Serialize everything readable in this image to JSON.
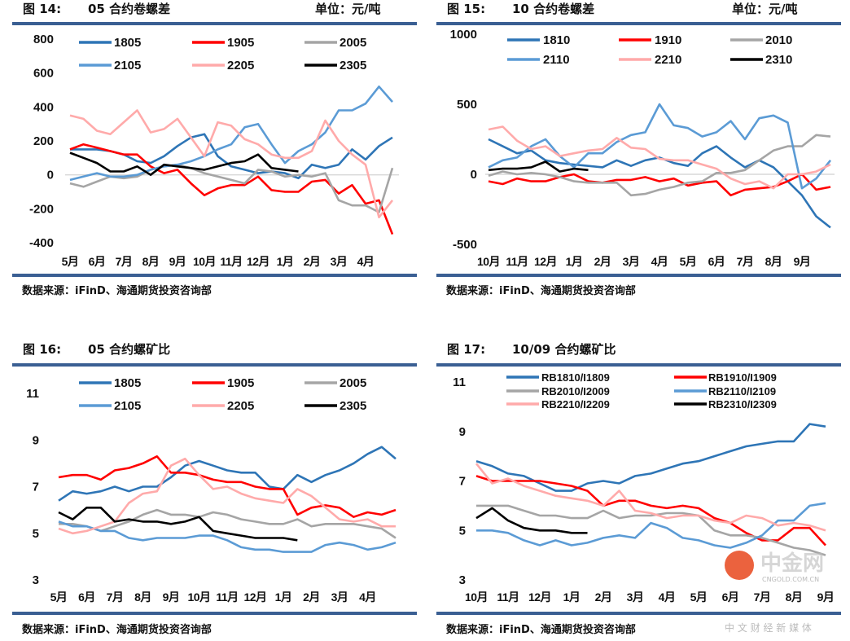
{
  "source_label": "数据来源：iFinD、海通期货投资咨询部",
  "watermark": {
    "name": "中金网",
    "domain": "CNGOLD.COM.CN",
    "slogan": "中 文 财 经 新 媒 体"
  },
  "chart_data": [
    {
      "type": "line",
      "figure_no": "图 14:",
      "title": "05 合约卷螺差",
      "unit": "单位：元/吨",
      "x_ticks": [
        "5月",
        "6月",
        "7月",
        "8月",
        "9月",
        "10月",
        "11月",
        "12月",
        "1月",
        "2月",
        "3月",
        "4月"
      ],
      "y_ticks": [
        "800",
        "600",
        "400",
        "200",
        "0",
        "-200",
        "-400"
      ],
      "ylim": [
        -400,
        800
      ],
      "zero_line": true,
      "legend": "top",
      "series": [
        {
          "name": "1805",
          "color": "#2e75b6",
          "values": [
            150,
            150,
            150,
            140,
            120,
            80,
            70,
            110,
            170,
            220,
            240,
            110,
            50,
            30,
            10,
            20,
            10,
            -20,
            60,
            40,
            60,
            150,
            90,
            170,
            220
          ]
        },
        {
          "name": "1905",
          "color": "#ff0000",
          "values": [
            150,
            180,
            160,
            140,
            120,
            120,
            50,
            10,
            30,
            -50,
            -120,
            -80,
            -60,
            -60,
            -10,
            -90,
            -100,
            -100,
            -40,
            -30,
            -110,
            -60,
            -170,
            -150,
            -350
          ]
        },
        {
          "name": "2005",
          "color": "#a5a5a5",
          "values": [
            -50,
            -70,
            -40,
            -10,
            -20,
            -10,
            30,
            50,
            60,
            40,
            10,
            -10,
            -30,
            -50,
            30,
            20,
            -10,
            0,
            -10,
            10,
            -150,
            -180,
            -180,
            -220,
            40
          ]
        },
        {
          "name": "2105",
          "color": "#5b9bd5",
          "values": [
            -30,
            -10,
            10,
            -10,
            -10,
            0,
            30,
            50,
            60,
            80,
            110,
            150,
            180,
            280,
            300,
            180,
            70,
            140,
            180,
            250,
            380,
            380,
            420,
            520,
            430
          ]
        },
        {
          "name": "2205",
          "color": "#ffaaaa",
          "values": [
            350,
            330,
            260,
            240,
            310,
            380,
            250,
            270,
            330,
            220,
            110,
            310,
            290,
            210,
            180,
            120,
            100,
            100,
            140,
            320,
            200,
            120,
            60,
            -250,
            -150
          ]
        },
        {
          "name": "2305",
          "color": "#000000",
          "values": [
            130,
            100,
            70,
            20,
            20,
            50,
            0,
            60,
            50,
            40,
            30,
            50,
            70,
            80,
            120,
            40,
            30,
            20
          ]
        }
      ]
    },
    {
      "type": "line",
      "figure_no": "图 15:",
      "title": "10 合约卷螺差",
      "unit": "单位：元/吨",
      "x_ticks": [
        "10月",
        "11月",
        "12月",
        "1月",
        "2月",
        "3月",
        "4月",
        "5月",
        "6月",
        "7月",
        "8月",
        "9月"
      ],
      "y_ticks": [
        "1000",
        "500",
        "0",
        "-500"
      ],
      "ylim": [
        -500,
        1000
      ],
      "zero_line": true,
      "legend": "top",
      "series": [
        {
          "name": "1810",
          "color": "#2e75b6",
          "values": [
            250,
            200,
            150,
            170,
            100,
            80,
            70,
            60,
            50,
            100,
            60,
            100,
            120,
            80,
            60,
            150,
            200,
            120,
            50,
            100,
            50,
            -50,
            -150,
            -300,
            -380
          ]
        },
        {
          "name": "1910",
          "color": "#ff0000",
          "values": [
            -50,
            -70,
            -30,
            -50,
            -50,
            -20,
            0,
            -50,
            -60,
            -40,
            -40,
            -20,
            -50,
            -30,
            -80,
            -60,
            -50,
            -150,
            -110,
            -100,
            -90,
            -50,
            0,
            -110,
            -90
          ]
        },
        {
          "name": "2010",
          "color": "#a5a5a5",
          "values": [
            -10,
            20,
            0,
            10,
            0,
            -20,
            -50,
            -60,
            -60,
            -60,
            -150,
            -140,
            -110,
            -90,
            -60,
            -50,
            10,
            10,
            30,
            100,
            170,
            200,
            200,
            280,
            270
          ]
        },
        {
          "name": "2110",
          "color": "#5b9bd5",
          "values": [
            50,
            100,
            120,
            200,
            250,
            130,
            50,
            150,
            150,
            230,
            280,
            300,
            500,
            350,
            330,
            270,
            300,
            380,
            250,
            400,
            420,
            370,
            -100,
            -30,
            100
          ]
        },
        {
          "name": "2210",
          "color": "#ffaaaa",
          "values": [
            320,
            340,
            240,
            180,
            200,
            130,
            150,
            170,
            180,
            260,
            190,
            180,
            110,
            100,
            100,
            70,
            40,
            -30,
            -70,
            -50,
            -100,
            0,
            0,
            20,
            70
          ]
        },
        {
          "name": "2310",
          "color": "#000000",
          "values": [
            30,
            40,
            40,
            50,
            90,
            20,
            40,
            30
          ]
        }
      ]
    },
    {
      "type": "line",
      "figure_no": "图 16:",
      "title": "05 合约螺矿比",
      "x_ticks": [
        "5月",
        "6月",
        "7月",
        "8月",
        "9月",
        "10月",
        "11月",
        "12月",
        "1月",
        "2月",
        "3月",
        "4月"
      ],
      "y_ticks": [
        "11",
        "9",
        "7",
        "5",
        "3"
      ],
      "ylim": [
        3,
        11
      ],
      "zero_line": false,
      "legend": "top",
      "series": [
        {
          "name": "1805",
          "color": "#2e75b6",
          "values": [
            6.4,
            6.8,
            6.7,
            6.8,
            7.0,
            6.8,
            7.0,
            7.0,
            7.4,
            7.9,
            8.1,
            7.9,
            7.7,
            7.6,
            7.6,
            7.0,
            6.9,
            7.5,
            7.2,
            7.5,
            7.7,
            8.0,
            8.4,
            8.7,
            8.2
          ]
        },
        {
          "name": "1905",
          "color": "#ff0000",
          "values": [
            7.4,
            7.5,
            7.5,
            7.3,
            7.7,
            7.8,
            8.0,
            8.3,
            7.6,
            7.6,
            7.5,
            7.3,
            7.2,
            7.2,
            7.0,
            6.9,
            6.9,
            5.8,
            6.1,
            6.2,
            6.1,
            5.7,
            5.9,
            5.8,
            6.0
          ]
        },
        {
          "name": "2005",
          "color": "#a5a5a5",
          "values": [
            5.4,
            5.4,
            5.3,
            5.1,
            5.3,
            5.5,
            5.8,
            6.0,
            5.8,
            5.8,
            5.7,
            5.9,
            5.8,
            5.6,
            5.5,
            5.4,
            5.4,
            5.6,
            5.3,
            5.4,
            5.4,
            5.4,
            5.3,
            5.2,
            4.8
          ]
        },
        {
          "name": "2105",
          "color": "#5b9bd5",
          "values": [
            5.5,
            5.3,
            5.3,
            5.1,
            5.1,
            4.8,
            4.7,
            4.8,
            4.8,
            4.8,
            4.9,
            4.9,
            4.7,
            4.4,
            4.3,
            4.3,
            4.2,
            4.2,
            4.2,
            4.5,
            4.6,
            4.5,
            4.3,
            4.4,
            4.6
          ]
        },
        {
          "name": "2205",
          "color": "#ffaaaa",
          "values": [
            5.2,
            5.0,
            5.1,
            5.3,
            5.5,
            6.3,
            6.7,
            6.8,
            7.9,
            8.2,
            7.5,
            6.9,
            7.0,
            6.7,
            6.5,
            6.4,
            6.3,
            6.9,
            6.6,
            6.1,
            5.6,
            5.5,
            5.6,
            5.3,
            5.3
          ]
        },
        {
          "name": "2305",
          "color": "#000000",
          "values": [
            5.9,
            5.6,
            6.1,
            6.1,
            5.5,
            5.6,
            5.5,
            5.5,
            5.4,
            5.5,
            5.7,
            5.1,
            5.0,
            4.9,
            4.8,
            4.8,
            4.8,
            4.7
          ]
        }
      ]
    },
    {
      "type": "line",
      "figure_no": "图 17:",
      "title": "10/09 合约螺矿比",
      "x_ticks": [
        "10月",
        "11月",
        "12月",
        "1月",
        "2月",
        "3月",
        "4月",
        "5月",
        "6月",
        "7月",
        "8月",
        "9月"
      ],
      "y_ticks": [
        "11",
        "9",
        "7",
        "5",
        "3"
      ],
      "ylim": [
        3,
        11
      ],
      "zero_line": false,
      "legend": "top",
      "series": [
        {
          "name": "RB1810/I1809",
          "color": "#2e75b6",
          "values": [
            7.8,
            7.6,
            7.3,
            7.2,
            6.9,
            6.6,
            6.6,
            6.9,
            7.0,
            6.9,
            7.2,
            7.3,
            7.5,
            7.7,
            7.8,
            8.0,
            8.2,
            8.4,
            8.5,
            8.6,
            8.6,
            9.3,
            9.2
          ]
        },
        {
          "name": "RB1910/I1909",
          "color": "#ff0000",
          "values": [
            7.2,
            7.0,
            7.0,
            7.0,
            7.0,
            6.9,
            6.8,
            6.6,
            6.0,
            6.2,
            6.2,
            6.0,
            5.9,
            6.0,
            5.9,
            5.5,
            5.3,
            4.9,
            4.6,
            4.6,
            5.1,
            5.1,
            4.4
          ]
        },
        {
          "name": "RB2010/I2009",
          "color": "#a5a5a5",
          "values": [
            6.0,
            6.0,
            6.0,
            5.8,
            5.6,
            5.6,
            5.5,
            5.5,
            5.8,
            5.5,
            5.6,
            5.6,
            5.7,
            5.7,
            5.6,
            5.0,
            4.8,
            4.8,
            4.7,
            4.5,
            4.3,
            4.2,
            4.0
          ]
        },
        {
          "name": "RB2110/I2109",
          "color": "#5b9bd5",
          "values": [
            5.0,
            5.0,
            4.9,
            4.6,
            4.4,
            4.6,
            4.4,
            4.5,
            4.7,
            4.8,
            4.7,
            5.3,
            5.1,
            4.7,
            4.6,
            4.4,
            4.3,
            4.5,
            4.8,
            5.4,
            5.4,
            6.0,
            6.1
          ]
        },
        {
          "name": "RB2210/I2209",
          "color": "#ffaaaa",
          "values": [
            7.7,
            6.9,
            7.1,
            6.8,
            6.6,
            6.4,
            6.3,
            6.2,
            6.0,
            6.6,
            5.8,
            5.7,
            5.5,
            5.6,
            5.6,
            5.4,
            5.3,
            5.6,
            5.5,
            5.2,
            5.3,
            5.2,
            5.0
          ]
        },
        {
          "name": "RB2310/I2309",
          "color": "#000000",
          "values": [
            5.5,
            5.9,
            5.4,
            5.1,
            5.0,
            5.0,
            4.9,
            4.9
          ]
        }
      ]
    }
  ]
}
